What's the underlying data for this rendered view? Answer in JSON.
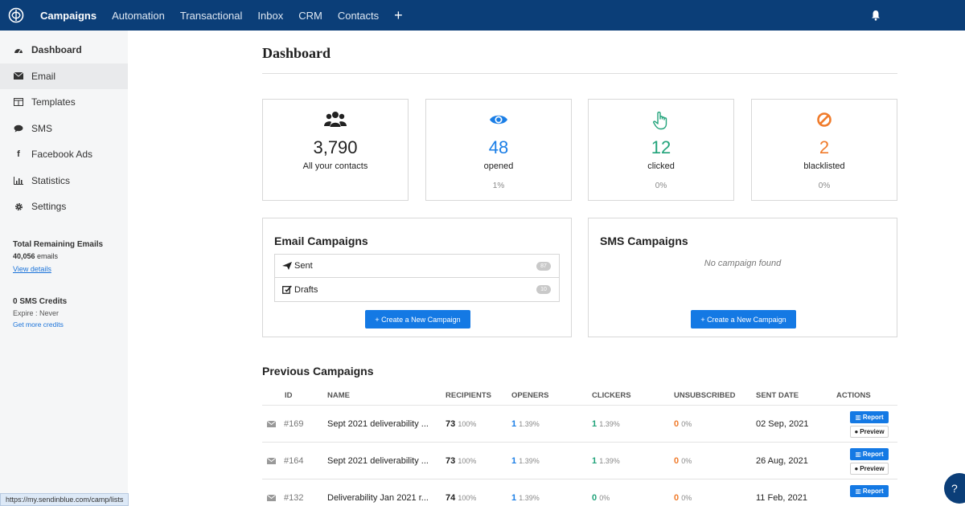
{
  "nav": {
    "items": [
      "Campaigns",
      "Automation",
      "Transactional",
      "Inbox",
      "CRM",
      "Contacts"
    ],
    "plus": "+"
  },
  "sidebar": {
    "items": [
      {
        "label": "Dashboard",
        "icon": "dashboard-icon"
      },
      {
        "label": "Email",
        "icon": "envelope-icon"
      },
      {
        "label": "Templates",
        "icon": "template-icon"
      },
      {
        "label": "SMS",
        "icon": "chat-icon"
      },
      {
        "label": "Facebook Ads",
        "icon": "facebook-icon"
      },
      {
        "label": "Statistics",
        "icon": "chart-icon"
      },
      {
        "label": "Settings",
        "icon": "gear-icon"
      }
    ],
    "emails": {
      "title": "Total Remaining Emails",
      "count": "40,056",
      "unit": " emails",
      "link": "View details"
    },
    "sms": {
      "title": "0 SMS Credits",
      "expire": "Expire : Never",
      "link": "Get more credits"
    },
    "status_url": "https://my.sendinblue.com/camp/lists"
  },
  "main": {
    "title": "Dashboard",
    "stats": [
      {
        "value": "3,790",
        "label": "All your contacts",
        "pct": "",
        "color": "#222222"
      },
      {
        "value": "48",
        "label": "opened",
        "pct": "1%",
        "color": "#1a7ee6"
      },
      {
        "value": "12",
        "label": "clicked",
        "pct": "0%",
        "color": "#21a37a"
      },
      {
        "value": "2",
        "label": "blacklisted",
        "pct": "0%",
        "color": "#f07b2b"
      }
    ],
    "email_campaigns": {
      "title": "Email Campaigns",
      "rows": [
        {
          "label": "Sent",
          "count": "87"
        },
        {
          "label": "Drafts",
          "count": "10"
        }
      ],
      "button": "+ Create a New Campaign"
    },
    "sms_campaigns": {
      "title": "SMS Campaigns",
      "empty": "No campaign found",
      "button": "+ Create a New Campaign"
    },
    "previous": {
      "title": "Previous Campaigns",
      "headers": [
        "ID",
        "NAME",
        "RECIPIENTS",
        "OPENERS",
        "CLICKERS",
        "UNSUBSCRIBED",
        "SENT DATE",
        "ACTIONS"
      ],
      "rows": [
        {
          "id": "#169",
          "name": "Sept 2021 deliverability ...",
          "recipients": "73",
          "recipients_pct": "100%",
          "openers": "1",
          "openers_pct": "1.39%",
          "clickers": "1",
          "clickers_pct": "1.39%",
          "unsub": "0",
          "unsub_pct": "0%",
          "date": "02 Sep, 2021"
        },
        {
          "id": "#164",
          "name": "Sept 2021 deliverability ...",
          "recipients": "73",
          "recipients_pct": "100%",
          "openers": "1",
          "openers_pct": "1.39%",
          "clickers": "1",
          "clickers_pct": "1.39%",
          "unsub": "0",
          "unsub_pct": "0%",
          "date": "26 Aug, 2021"
        },
        {
          "id": "#132",
          "name": "Deliverability Jan 2021 r...",
          "recipients": "74",
          "recipients_pct": "100%",
          "openers": "1",
          "openers_pct": "1.39%",
          "clickers": "0",
          "clickers_pct": "0%",
          "unsub": "0",
          "unsub_pct": "0%",
          "date": "11 Feb, 2021"
        }
      ],
      "report": "Report",
      "preview": "Preview"
    }
  }
}
